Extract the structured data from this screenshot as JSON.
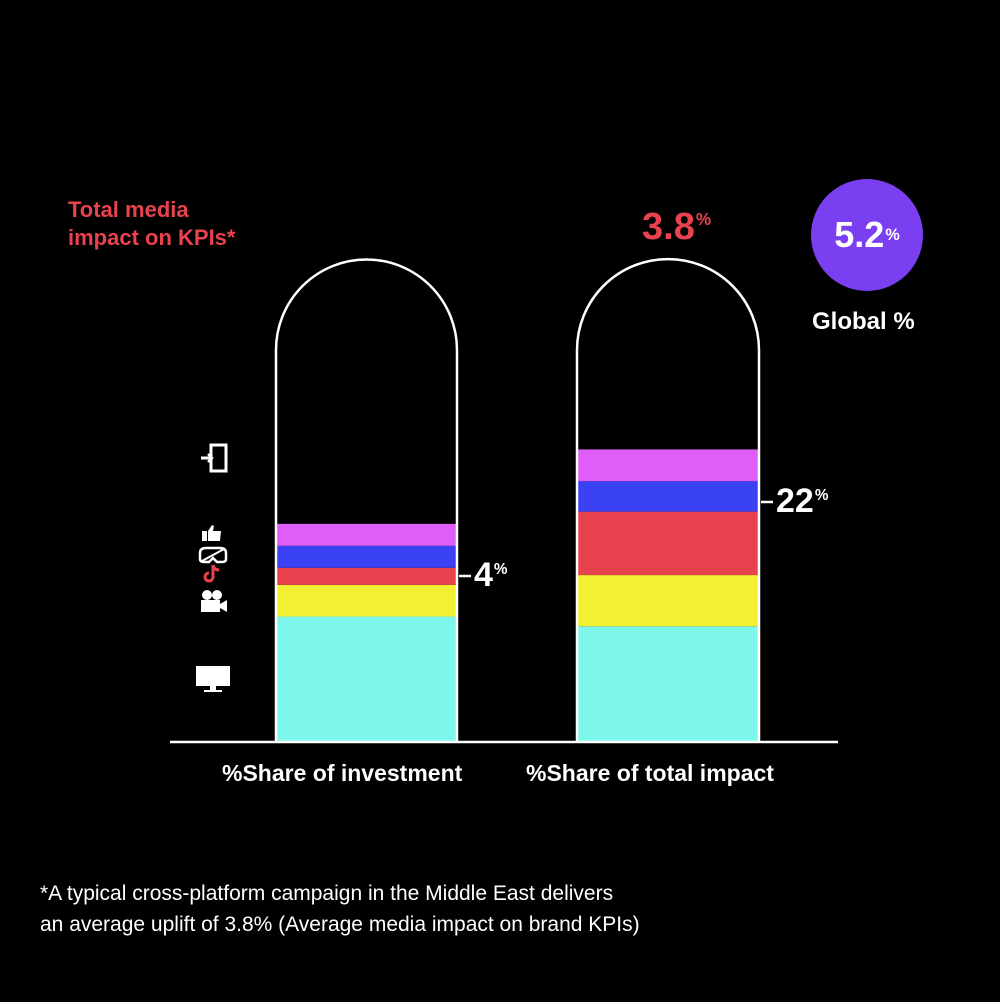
{
  "title_lines": [
    "Total media",
    "impact on KPIs*"
  ],
  "callout": {
    "value": "3.8",
    "unit": "%"
  },
  "global": {
    "value": "5.2",
    "unit": "%",
    "caption": "Global %"
  },
  "colors": {
    "cyan": "#7df7ec",
    "yellow": "#f2f032",
    "red": "#e8424e",
    "blue": "#3a42f4",
    "magenta": "#df5ef8",
    "purple": "#7a3ff0",
    "title_red": "#e8424e"
  },
  "icons": [
    "door-icon",
    "thumbs-up-icon",
    "vr-headset-icon",
    "tiktok-icon",
    "video-camera-icon",
    "tv-icon"
  ],
  "chart_data": {
    "type": "bar",
    "stacked": true,
    "categories": [
      "%Share of investment",
      "%Share of total impact"
    ],
    "series": [
      {
        "color": "#7df7ec",
        "icon": "tv-icon",
        "values": [
          51,
          47
        ]
      },
      {
        "color": "#f2f032",
        "icon": "video-camera-icon",
        "values": [
          13,
          21
        ]
      },
      {
        "color": "#e8424e",
        "icon": "tiktok-icon",
        "values": [
          7,
          26
        ]
      },
      {
        "color": "#3a42f4",
        "icon": "vr-headset-icon",
        "values": [
          9,
          12.5
        ]
      },
      {
        "color": "#df5ef8",
        "icon": "thumbs-up-icon",
        "values": [
          9,
          13
        ]
      }
    ],
    "bar_labels": [
      {
        "value": "4",
        "unit": "%"
      },
      {
        "value": "22",
        "unit": "%"
      }
    ],
    "grid": false,
    "legend": "none"
  },
  "footnote": [
    "*A typical cross-platform campaign in the Middle East delivers",
    "an average uplift of 3.8% (Average media impact on brand KPIs)"
  ]
}
